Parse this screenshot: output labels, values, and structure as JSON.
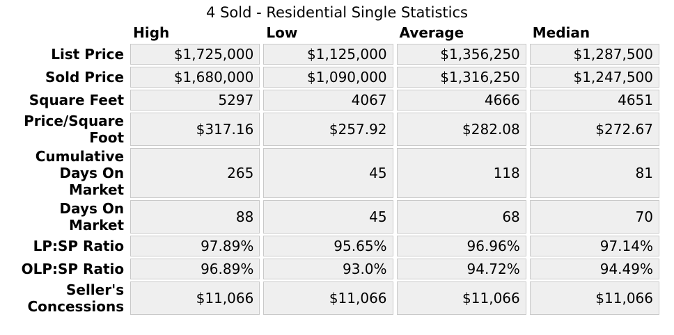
{
  "colors": {
    "cell_bg": "#efefef",
    "cell_border": "#c9c9c9",
    "text": "#000000",
    "background": "#ffffff"
  },
  "chart_data": {
    "type": "table",
    "title": "4 Sold - Residential Single Statistics",
    "columns": [
      "High",
      "Low",
      "Average",
      "Median"
    ],
    "rows": [
      {
        "label": "List Price",
        "values": [
          "$1,725,000",
          "$1,125,000",
          "$1,356,250",
          "$1,287,500"
        ]
      },
      {
        "label": "Sold Price",
        "values": [
          "$1,680,000",
          "$1,090,000",
          "$1,316,250",
          "$1,247,500"
        ]
      },
      {
        "label": "Square Feet",
        "values": [
          "5297",
          "4067",
          "4666",
          "4651"
        ]
      },
      {
        "label": "Price/Square Foot",
        "values": [
          "$317.16",
          "$257.92",
          "$282.08",
          "$272.67"
        ]
      },
      {
        "label": "Cumulative Days On Market",
        "values": [
          "265",
          "45",
          "118",
          "81"
        ]
      },
      {
        "label": "Days On Market",
        "values": [
          "88",
          "45",
          "68",
          "70"
        ]
      },
      {
        "label": "LP:SP Ratio",
        "values": [
          "97.89%",
          "95.65%",
          "96.96%",
          "97.14%"
        ]
      },
      {
        "label": "OLP:SP Ratio",
        "values": [
          "96.89%",
          "93.0%",
          "94.72%",
          "94.49%"
        ]
      },
      {
        "label": "Seller's Concessions",
        "values": [
          "$11,066",
          "$11,066",
          "$11,066",
          "$11,066"
        ]
      }
    ]
  }
}
